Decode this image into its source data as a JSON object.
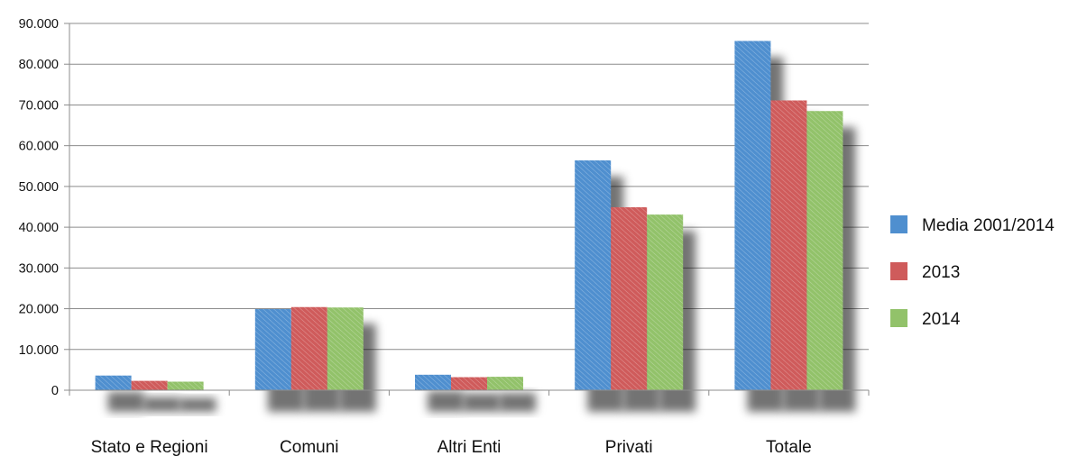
{
  "chart_data": {
    "type": "bar",
    "title": "",
    "xlabel": "",
    "ylabel": "",
    "categories": [
      "Stato e Regioni",
      "Comuni",
      "Altri Enti",
      "Privati",
      "Totale"
    ],
    "series": [
      {
        "name": "Media 2001/2014",
        "color": "#4f8fcf",
        "values": [
          3600,
          19900,
          3800,
          56400,
          85700
        ]
      },
      {
        "name": "2013",
        "color": "#cf5b5b",
        "values": [
          2300,
          20400,
          3200,
          44900,
          71100
        ]
      },
      {
        "name": "2014",
        "color": "#92c26a",
        "values": [
          2100,
          20300,
          3300,
          43100,
          68500
        ]
      }
    ],
    "ylim": [
      0,
      90000
    ],
    "yticks": [
      0,
      10000,
      20000,
      30000,
      40000,
      50000,
      60000,
      70000,
      80000,
      90000
    ],
    "ytick_labels": [
      "0",
      "10.000",
      "20.000",
      "30.000",
      "40.000",
      "50.000",
      "60.000",
      "70.000",
      "80.000",
      "90.000"
    ],
    "grid": true,
    "legend_position": "right",
    "bar_style": "hatched-sketch"
  }
}
